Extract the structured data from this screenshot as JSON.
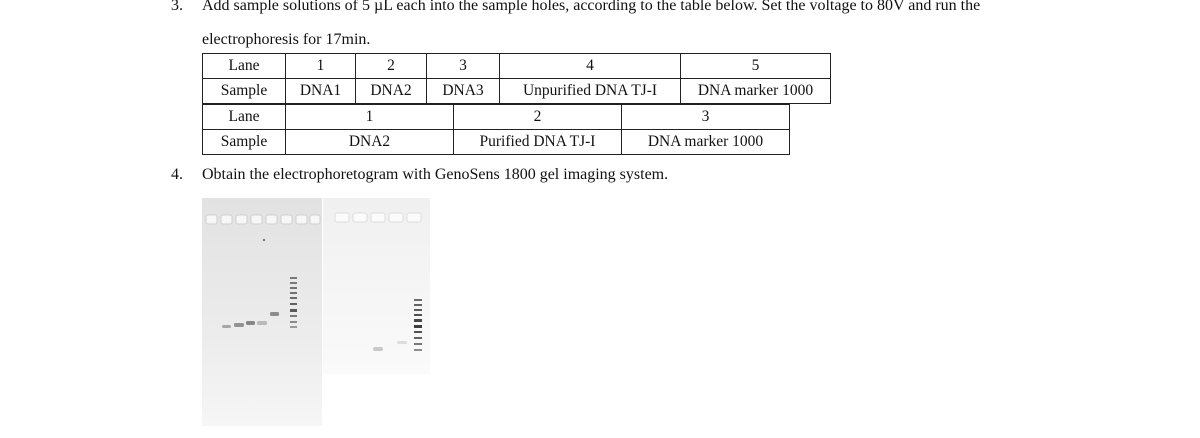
{
  "step3": {
    "number": "3.",
    "line1": "Add sample solutions of 5 µL each into the sample holes, according to the table below. Set the voltage to 80V and run the",
    "line2": "electrophoresis for 17min."
  },
  "table1": {
    "lane_label": "Lane",
    "sample_label": "Sample",
    "lanes": [
      "1",
      "2",
      "3",
      "4",
      "5"
    ],
    "samples": [
      "DNA1",
      "DNA2",
      "DNA3",
      "Unpurified DNA TJ-I",
      "DNA marker 1000"
    ]
  },
  "table2": {
    "lane_label": "Lane",
    "sample_label": "Sample",
    "lanes": [
      "1",
      "2",
      "3"
    ],
    "samples": [
      "DNA2",
      "Purified DNA TJ-I",
      "DNA marker 1000"
    ]
  },
  "step4": {
    "number": "4.",
    "text": "Obtain the electrophoretogram with GenoSens 1800 gel imaging system."
  }
}
